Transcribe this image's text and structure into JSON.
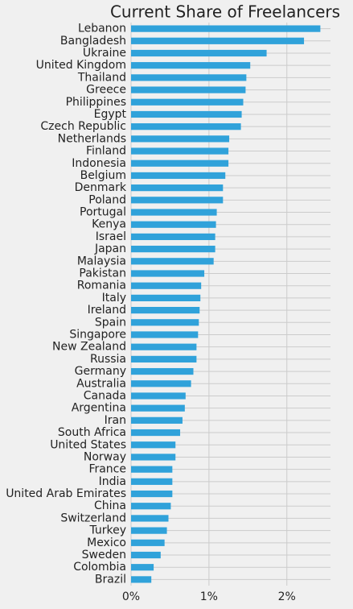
{
  "chart_data": {
    "type": "barh",
    "title": "Current Share of Freelancers",
    "categories": [
      "Lebanon",
      "Bangladesh",
      "Ukraine",
      "United Kingdom",
      "Thailand",
      "Greece",
      "Philippines",
      "Egypt",
      "Czech Republic",
      "Netherlands",
      "Finland",
      "Indonesia",
      "Belgium",
      "Denmark",
      "Poland",
      "Portugal",
      "Kenya",
      "Israel",
      "Japan",
      "Malaysia",
      "Pakistan",
      "Romania",
      "Italy",
      "Ireland",
      "Spain",
      "Singapore",
      "New Zealand",
      "Russia",
      "Germany",
      "Australia",
      "Canada",
      "Argentina",
      "Iran",
      "South Africa",
      "United States",
      "Norway",
      "France",
      "India",
      "United Arab Emirates",
      "China",
      "Switzerland",
      "Turkey",
      "Mexico",
      "Sweden",
      "Colombia",
      "Brazil"
    ],
    "values": [
      2.43,
      2.22,
      1.74,
      1.53,
      1.48,
      1.47,
      1.44,
      1.42,
      1.41,
      1.26,
      1.25,
      1.25,
      1.21,
      1.18,
      1.18,
      1.1,
      1.09,
      1.08,
      1.08,
      1.06,
      0.94,
      0.9,
      0.89,
      0.88,
      0.87,
      0.86,
      0.84,
      0.84,
      0.8,
      0.77,
      0.7,
      0.69,
      0.66,
      0.63,
      0.57,
      0.57,
      0.53,
      0.53,
      0.53,
      0.51,
      0.48,
      0.46,
      0.43,
      0.38,
      0.29,
      0.26
    ],
    "color": "#30a2da",
    "xlim": [
      0,
      2.56
    ],
    "xticks": [
      {
        "value": 0,
        "label": "0%"
      },
      {
        "value": 1,
        "label": "1%"
      },
      {
        "value": 2,
        "label": "2%"
      }
    ],
    "grid": true
  }
}
